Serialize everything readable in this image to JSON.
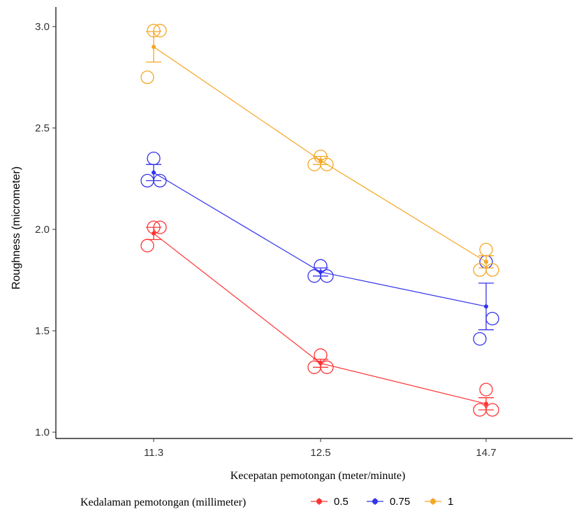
{
  "chart_data": {
    "type": "line",
    "xlabel": "Kecepatan pemotongan (meter/minute)",
    "ylabel": "Roughness (micrometer)",
    "categories": [
      "11.3",
      "12.5",
      "14.7"
    ],
    "ylim": [
      1.0,
      3.1
    ],
    "yticks": [
      "1.0",
      "1.5",
      "2.0",
      "2.5",
      "3.0"
    ],
    "legend_title": "Kedalaman pemotongan (millimeter)",
    "legend_position": "bottom",
    "grid": false,
    "series": [
      {
        "name": "0.5",
        "color": "#ff3333",
        "means": [
          1.98,
          1.34,
          1.14
        ],
        "errors": [
          0.03,
          0.02,
          0.03
        ],
        "observations": [
          [
            2.01,
            2.01,
            1.92
          ],
          [
            1.38,
            1.32,
            1.32
          ],
          [
            1.21,
            1.11,
            1.11
          ]
        ]
      },
      {
        "name": "0.75",
        "color": "#3333ee",
        "means": [
          2.28,
          1.79,
          1.62
        ],
        "errors": [
          0.04,
          0.02,
          0.115
        ],
        "observations": [
          [
            2.35,
            2.24,
            2.24
          ],
          [
            1.82,
            1.77,
            1.77
          ],
          [
            1.84,
            1.56,
            1.46
          ]
        ]
      },
      {
        "name": "1",
        "color": "#f5a623",
        "means": [
          2.9,
          2.34,
          1.84
        ],
        "errors": [
          0.075,
          0.02,
          0.03
        ],
        "observations": [
          [
            2.98,
            2.98,
            2.75
          ],
          [
            2.36,
            2.32,
            2.32
          ],
          [
            1.9,
            1.8,
            1.8
          ]
        ]
      }
    ]
  }
}
